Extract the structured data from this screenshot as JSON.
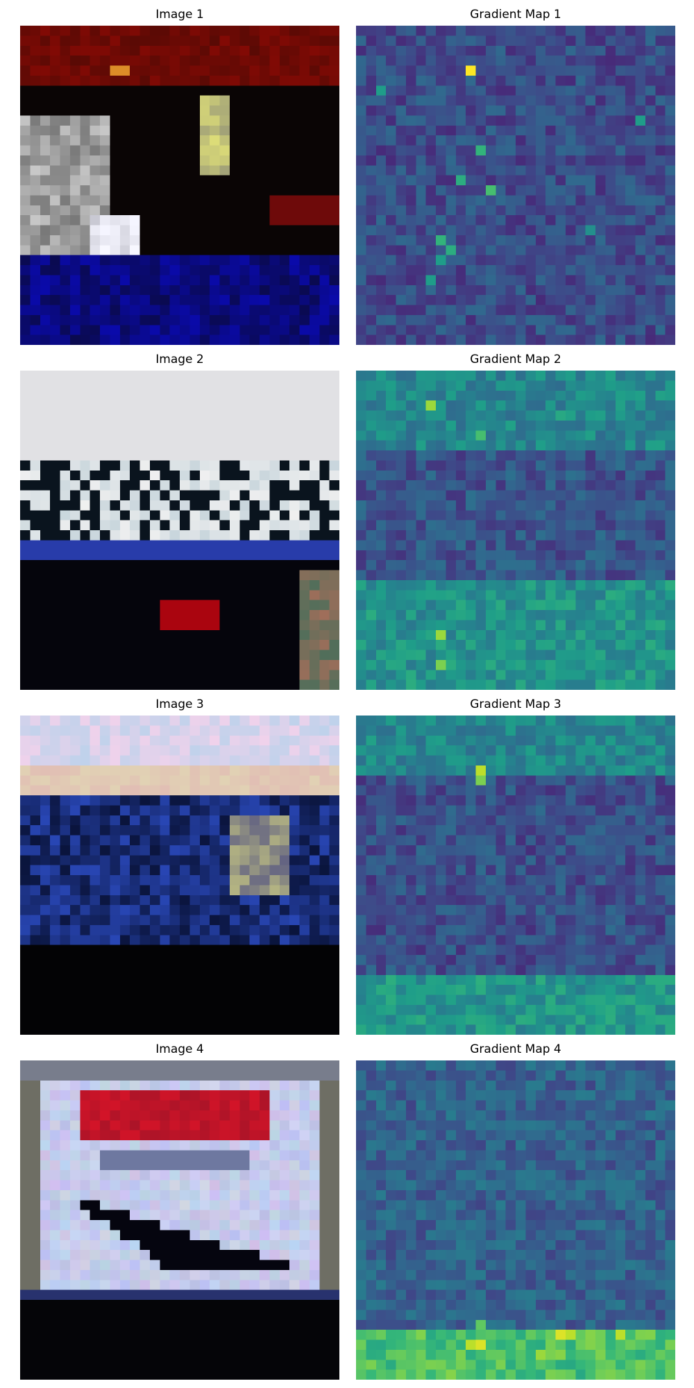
{
  "panels": [
    {
      "row": 1,
      "image_title": "Image 1",
      "map_title": "Gradient Map 1",
      "image_scene": "dark scene with red background and light figure",
      "map_colormap": "viridis"
    },
    {
      "row": 2,
      "image_title": "Image 2",
      "map_title": "Gradient Map 2",
      "image_scene": "white ship on dark water with red marker",
      "map_colormap": "viridis"
    },
    {
      "row": 3,
      "image_title": "Image 3",
      "map_title": "Gradient Map 3",
      "image_scene": "dark boat on blue water under pale sky",
      "map_colormap": "viridis"
    },
    {
      "row": 4,
      "image_title": "Image 4",
      "map_title": "Gradient Map 4",
      "image_scene": "airplane silhouette on light sign with red text",
      "map_colormap": "viridis"
    }
  ],
  "colors": {
    "viridis_low": "#440154",
    "viridis_mid": "#21918c",
    "viridis_high": "#fde725"
  }
}
